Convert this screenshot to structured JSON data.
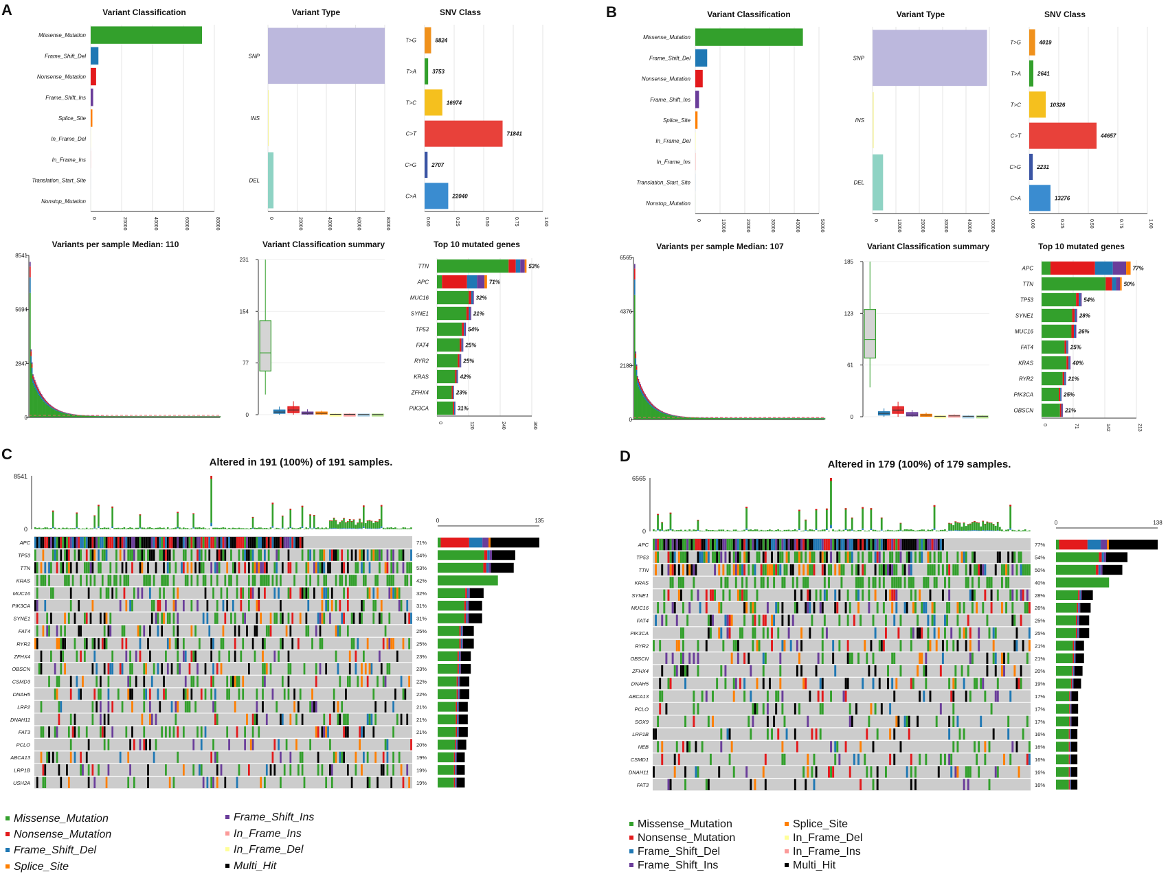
{
  "panel_letters": [
    "A",
    "B",
    "C",
    "D"
  ],
  "colors": {
    "Missense_Mutation": "#33a02c",
    "Nonsense_Mutation": "#e31a1c",
    "Frame_Shift_Del": "#1f78b4",
    "Frame_Shift_Ins": "#6a3d9a",
    "Splice_Site": "#ff7f00",
    "In_Frame_Ins": "#fb9a99",
    "In_Frame_Del": "#ffff99",
    "Multi_Hit": "#000000",
    "Translation_Start_Site": "#a6cee3",
    "Nonstop_Mutation": "#b2df8a",
    "SNP": "#bcb8dd",
    "INS": "#f5f3a2",
    "DEL": "#8fd3c4",
    "T>G": "#f0911c",
    "T>A": "#33a02c",
    "T>C": "#f5c01e",
    "C>T": "#e8413a",
    "C>G": "#3a54a4",
    "C>A": "#3a8cd0",
    "no_mutation": "#cccccc"
  },
  "chart_data": [
    {
      "panel": "A",
      "type": "bar",
      "subplots": {
        "variant_classification": {
          "title": "Variant Classification",
          "categories": [
            "Missense_Mutation",
            "Frame_Shift_Del",
            "Nonsense_Mutation",
            "Frame_Shift_Ins",
            "Splice_Site",
            "In_Frame_Del",
            "In_Frame_Ins",
            "Translation_Start_Site",
            "Nonstop_Mutation"
          ],
          "values": [
            72000,
            5000,
            3500,
            1600,
            1100,
            150,
            120,
            60,
            30
          ],
          "xlim": [
            0,
            80000
          ],
          "xticks": [
            "0",
            "20000",
            "40000",
            "60000",
            "80000"
          ]
        },
        "variant_type": {
          "title": "Variant Type",
          "categories": [
            "SNP",
            "INS",
            "DEL"
          ],
          "values": [
            80000,
            600,
            3800
          ],
          "xlim": [
            0,
            80000
          ],
          "xticks": [
            "0",
            "20000",
            "40000",
            "60000",
            "80000"
          ]
        },
        "snv_class": {
          "title": "SNV Class",
          "categories": [
            "T>G",
            "T>A",
            "T>C",
            "C>T",
            "C>G",
            "C>A"
          ],
          "values": [
            8824,
            3753,
            16974,
            71841,
            2707,
            22040
          ],
          "labels": [
            "8824",
            "3753",
            "16974",
            "71841",
            "2707",
            "22040"
          ],
          "fractions": [
            0.055,
            0.03,
            0.15,
            0.66,
            0.025,
            0.2
          ],
          "xlim": [
            0,
            1
          ],
          "xticks": [
            "0.00",
            "0.25",
            "0.50",
            "0.75",
            "1.00"
          ]
        },
        "variants_per_sample": {
          "title": "Variants per sample Median: 110",
          "yticks": [
            "0",
            "2847",
            "5694",
            "8541"
          ],
          "ymax": 8541,
          "median": 110
        },
        "classification_summary": {
          "title": "Variant Classification summary",
          "yticks": [
            "0",
            "77",
            "154",
            "231"
          ],
          "ymax": 231,
          "boxes": [
            {
              "type": "Missense_Mutation",
              "q1": 65,
              "median": 92,
              "q3": 140,
              "lo": 30,
              "hi": 231
            },
            {
              "type": "Frame_Shift_Del",
              "q1": 2,
              "median": 4,
              "q3": 7,
              "lo": 0,
              "hi": 12
            },
            {
              "type": "Nonsense_Mutation",
              "q1": 3,
              "median": 7,
              "q3": 12,
              "lo": 0,
              "hi": 20
            },
            {
              "type": "Frame_Shift_Ins",
              "q1": 1,
              "median": 2,
              "q3": 4,
              "lo": 0,
              "hi": 8
            },
            {
              "type": "Splice_Site",
              "q1": 1,
              "median": 2,
              "q3": 4,
              "lo": 0,
              "hi": 6
            },
            {
              "type": "In_Frame_Del",
              "q1": 0,
              "median": 0.5,
              "q3": 1,
              "lo": 0,
              "hi": 2
            },
            {
              "type": "In_Frame_Ins",
              "q1": 0,
              "median": 0.5,
              "q3": 1,
              "lo": 0,
              "hi": 2
            },
            {
              "type": "Translation_Start_Site",
              "q1": 0,
              "median": 0.3,
              "q3": 1,
              "lo": 0,
              "hi": 1
            },
            {
              "type": "Nonstop_Mutation",
              "q1": 0,
              "median": 0.3,
              "q3": 1,
              "lo": 0,
              "hi": 1
            }
          ]
        },
        "top_genes": {
          "title": "Top 10 mutated genes",
          "genes": [
            "TTN",
            "APC",
            "MUC16",
            "SYNE1",
            "TP53",
            "FAT4",
            "RYR2",
            "KRAS",
            "ZFHX4",
            "PIK3CA"
          ],
          "values": [
            340,
            190,
            140,
            130,
            110,
            100,
            92,
            80,
            65,
            70
          ],
          "percent_labels": [
            "53%",
            "71%",
            "32%",
            "21%",
            "54%",
            "25%",
            "25%",
            "42%",
            "23%",
            "31%"
          ],
          "xlim": [
            0,
            360
          ],
          "xticks": [
            "0",
            "120",
            "240",
            "360"
          ]
        }
      }
    },
    {
      "panel": "B",
      "type": "bar",
      "subplots": {
        "variant_classification": {
          "title": "Variant Classification",
          "categories": [
            "Missense_Mutation",
            "Frame_Shift_Del",
            "Nonsense_Mutation",
            "Frame_Shift_Ins",
            "Splice_Site",
            "In_Frame_Del",
            "In_Frame_Ins",
            "Translation_Start_Site",
            "Nonstop_Mutation"
          ],
          "values": [
            43500,
            4800,
            3000,
            1500,
            900,
            120,
            100,
            50,
            20
          ],
          "xlim": [
            0,
            50000
          ],
          "xticks": [
            "0",
            "10000",
            "20000",
            "30000",
            "40000",
            "50000"
          ]
        },
        "variant_type": {
          "title": "Variant Type",
          "categories": [
            "SNP",
            "INS",
            "DEL"
          ],
          "values": [
            49000,
            500,
            4500
          ],
          "xlim": [
            0,
            50000
          ],
          "xticks": [
            "0",
            "10000",
            "20000",
            "30000",
            "40000",
            "50000"
          ]
        },
        "snv_class": {
          "title": "SNV Class",
          "categories": [
            "T>G",
            "T>A",
            "T>C",
            "C>T",
            "C>G",
            "C>A"
          ],
          "values": [
            4019,
            2641,
            10326,
            44657,
            2231,
            13276
          ],
          "labels": [
            "4019",
            "2641",
            "10326",
            "44657",
            "2231",
            "13276"
          ],
          "fractions": [
            0.05,
            0.035,
            0.14,
            0.57,
            0.03,
            0.18
          ],
          "xlim": [
            0,
            1
          ],
          "xticks": [
            "0.00",
            "0.25",
            "0.50",
            "0.75",
            "1.00"
          ]
        },
        "variants_per_sample": {
          "title": "Variants per sample Median: 107",
          "yticks": [
            "0",
            "2188",
            "4376",
            "6565"
          ],
          "ymax": 6565,
          "median": 107
        },
        "classification_summary": {
          "title": "Variant Classification summary",
          "yticks": [
            "0",
            "61",
            "123",
            "185"
          ],
          "ymax": 185,
          "boxes": [
            {
              "type": "Missense_Mutation",
              "q1": 70,
              "median": 92,
              "q3": 128,
              "lo": 35,
              "hi": 185
            },
            {
              "type": "Frame_Shift_Del",
              "q1": 2,
              "median": 4,
              "q3": 6,
              "lo": 0,
              "hi": 10
            },
            {
              "type": "Nonsense_Mutation",
              "q1": 4,
              "median": 8,
              "q3": 12,
              "lo": 0,
              "hi": 18
            },
            {
              "type": "Frame_Shift_Ins",
              "q1": 1,
              "median": 2,
              "q3": 5,
              "lo": 0,
              "hi": 8
            },
            {
              "type": "Splice_Site",
              "q1": 1,
              "median": 2,
              "q3": 3,
              "lo": 0,
              "hi": 5
            },
            {
              "type": "In_Frame_Del",
              "q1": 0,
              "median": 0.5,
              "q3": 1,
              "lo": 0,
              "hi": 2
            },
            {
              "type": "In_Frame_Ins",
              "q1": 0,
              "median": 1,
              "q3": 2,
              "lo": 0,
              "hi": 3
            },
            {
              "type": "Translation_Start_Site",
              "q1": 0,
              "median": 0.5,
              "q3": 1,
              "lo": 0,
              "hi": 2
            },
            {
              "type": "Nonstop_Mutation",
              "q1": 0,
              "median": 0.5,
              "q3": 1,
              "lo": 0,
              "hi": 2
            }
          ]
        },
        "top_genes": {
          "title": "Top 10 mutated genes",
          "genes": [
            "APC",
            "TTN",
            "TP53",
            "SYNE1",
            "MUC16",
            "FAT4",
            "KRAS",
            "RYR2",
            "PIK3CA",
            "OBSCN"
          ],
          "values": [
            200,
            180,
            90,
            80,
            78,
            60,
            65,
            55,
            45,
            48
          ],
          "percent_labels": [
            "77%",
            "50%",
            "54%",
            "28%",
            "26%",
            "25%",
            "40%",
            "21%",
            "25%",
            "21%"
          ],
          "xlim": [
            0,
            213
          ],
          "xticks": [
            "0",
            "71",
            "142",
            "213"
          ]
        }
      }
    },
    {
      "panel": "C",
      "type": "heatmap",
      "title": "Altered in 191 (100%) of 191 samples.",
      "tmb_yticks": [
        "0",
        "8541"
      ],
      "right_axis": [
        "0",
        "135"
      ],
      "right_max": 135,
      "n_samples": 191,
      "genes": [
        "APC",
        "TP53",
        "TTN",
        "KRAS",
        "MUC16",
        "PIK3CA",
        "SYNE1",
        "FAT4",
        "RYR2",
        "ZFHX4",
        "OBSCN",
        "CSMD3",
        "DNAH5",
        "LRP2",
        "DNAH11",
        "FAT3",
        "PCLO",
        "ABCA13",
        "LRP1B",
        "USH2A"
      ],
      "percents": [
        "71%",
        "54%",
        "53%",
        "42%",
        "32%",
        "31%",
        "31%",
        "25%",
        "25%",
        "23%",
        "23%",
        "22%",
        "22%",
        "21%",
        "21%",
        "21%",
        "20%",
        "19%",
        "19%",
        "19%"
      ],
      "freq": [
        0.71,
        0.54,
        0.53,
        0.42,
        0.32,
        0.31,
        0.31,
        0.25,
        0.25,
        0.23,
        0.23,
        0.22,
        0.22,
        0.21,
        0.21,
        0.21,
        0.2,
        0.19,
        0.19,
        0.19
      ],
      "right_counts": [
        135,
        103,
        101,
        80,
        61,
        59,
        59,
        48,
        48,
        44,
        44,
        42,
        42,
        40,
        40,
        40,
        38,
        36,
        36,
        36
      ],
      "legend": [
        "Missense_Mutation",
        "Nonsense_Mutation",
        "Frame_Shift_Del",
        "Splice_Site",
        "Frame_Shift_Ins",
        "In_Frame_Ins",
        "In_Frame_Del",
        "Multi_Hit"
      ]
    },
    {
      "panel": "D",
      "type": "heatmap",
      "title": "Altered in 179 (100%) of 179 samples.",
      "tmb_yticks": [
        "0",
        "6565"
      ],
      "right_axis": [
        "0",
        "138"
      ],
      "right_max": 138,
      "n_samples": 179,
      "genes": [
        "APC",
        "TP53",
        "TTN",
        "KRAS",
        "SYNE1",
        "MUC16",
        "FAT4",
        "PIK3CA",
        "RYR2",
        "OBSCN",
        "ZFHX4",
        "DNAH5",
        "ABCA13",
        "PCLO",
        "SOX9",
        "LRP1B",
        "NEB",
        "CSMD1",
        "DNAH11",
        "FAT3"
      ],
      "percents": [
        "77%",
        "54%",
        "50%",
        "40%",
        "28%",
        "26%",
        "25%",
        "25%",
        "21%",
        "21%",
        "20%",
        "19%",
        "17%",
        "17%",
        "17%",
        "16%",
        "16%",
        "16%",
        "16%",
        "16%"
      ],
      "freq": [
        0.77,
        0.54,
        0.5,
        0.4,
        0.28,
        0.26,
        0.25,
        0.25,
        0.21,
        0.21,
        0.2,
        0.19,
        0.17,
        0.17,
        0.17,
        0.16,
        0.16,
        0.16,
        0.16,
        0.16
      ],
      "right_counts": [
        138,
        97,
        90,
        72,
        50,
        47,
        45,
        45,
        38,
        38,
        36,
        34,
        30,
        30,
        30,
        29,
        29,
        29,
        29,
        29
      ],
      "legend": [
        "Missense_Mutation",
        "Nonsense_Mutation",
        "Frame_Shift_Del",
        "Frame_Shift_Ins",
        "Splice_Site",
        "In_Frame_Del",
        "In_Frame_Ins",
        "Multi_Hit"
      ]
    }
  ]
}
